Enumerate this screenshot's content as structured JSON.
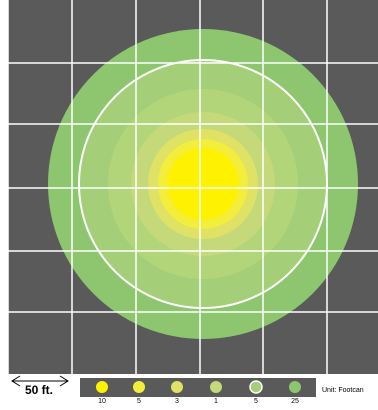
{
  "scale": {
    "label": "50 ft."
  },
  "unit": {
    "label": "Unit: Footcan"
  },
  "colors": {
    "background": "#5a5a5a",
    "grid": "#ffffff",
    "outline_ring": "#ffffff"
  },
  "legend": [
    {
      "value": "10",
      "color": "#fff200"
    },
    {
      "value": "5",
      "color": "#f3ee3c"
    },
    {
      "value": "3",
      "color": "#dfe265"
    },
    {
      "value": "1",
      "color": "#c6d97a"
    },
    {
      "value": "5",
      "color": "#a4cf78",
      "outlined": true
    },
    {
      "value": "25",
      "color": "#8dc66f"
    }
  ]
}
